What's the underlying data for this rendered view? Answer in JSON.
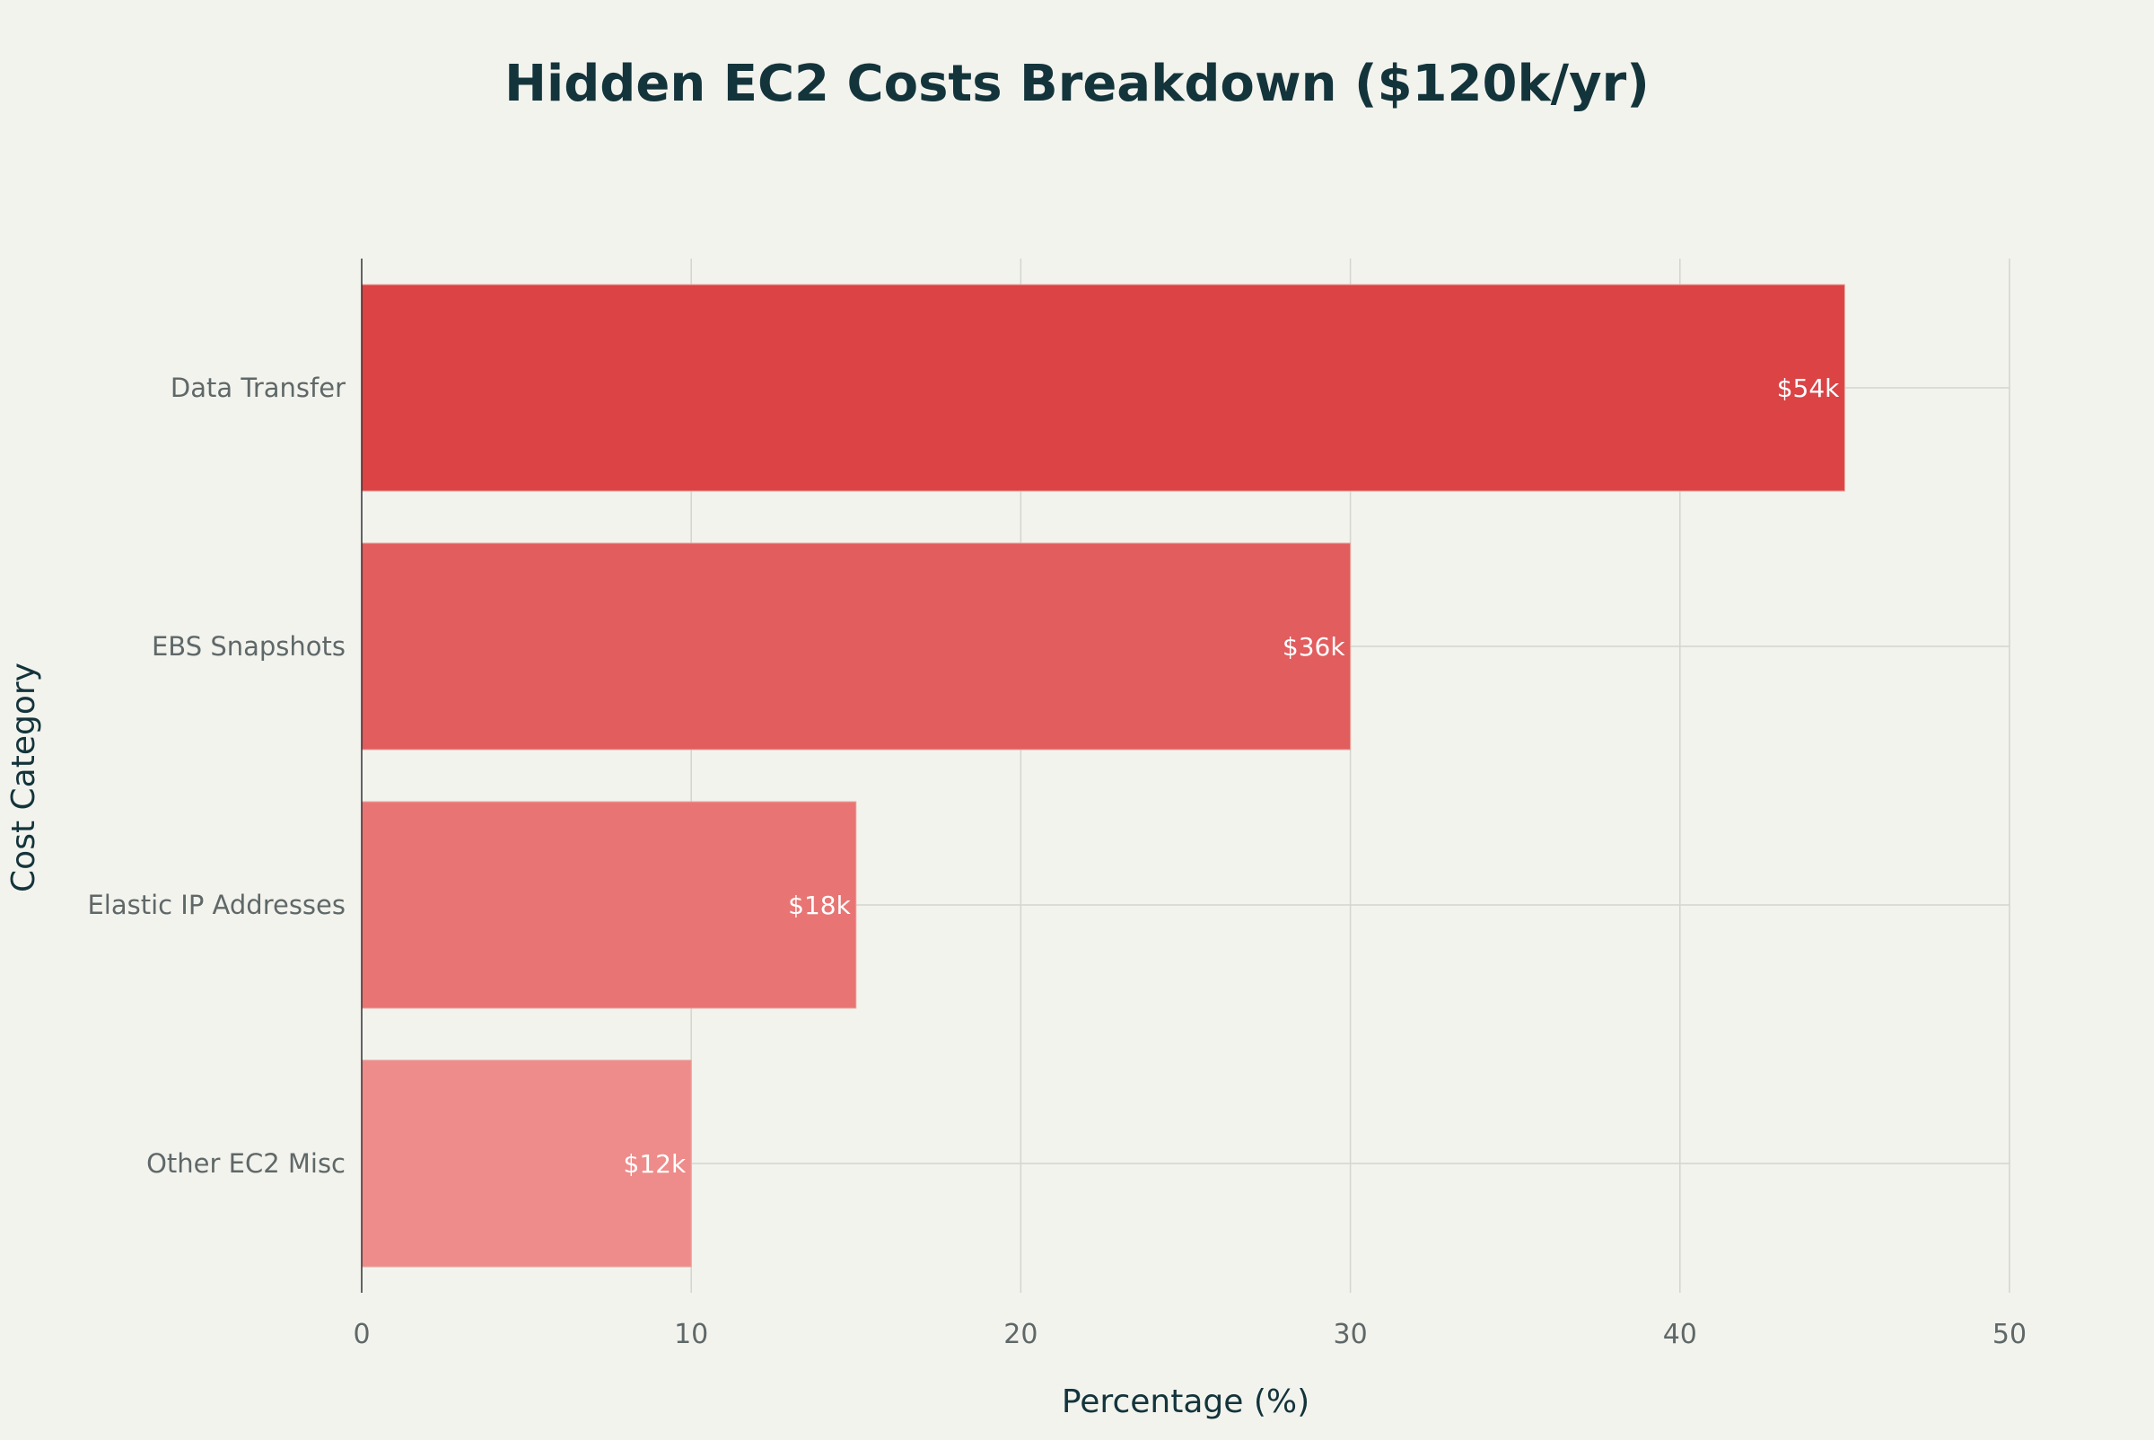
{
  "chart_data": {
    "type": "bar",
    "orientation": "horizontal",
    "title": "Hidden EC2 Costs Breakdown ($120k/yr)",
    "xlabel": "Percentage (%)",
    "ylabel": "Cost Category",
    "xlim": [
      0,
      50
    ],
    "xticks": [
      0,
      10,
      20,
      30,
      40,
      50
    ],
    "grid": true,
    "categories": [
      "Data Transfer",
      "EBS Snapshots",
      "Elastic IP Addresses",
      "Other EC2 Misc"
    ],
    "values": [
      45,
      30,
      15,
      10
    ],
    "data_labels": [
      "$54k",
      "$36k",
      "$18k",
      "$12k"
    ],
    "colors": [
      "#DB4345",
      "#E15D5E",
      "#E87574",
      "#ED8C8A"
    ],
    "background": "#F3F3EE",
    "title_color": "#13343B"
  }
}
